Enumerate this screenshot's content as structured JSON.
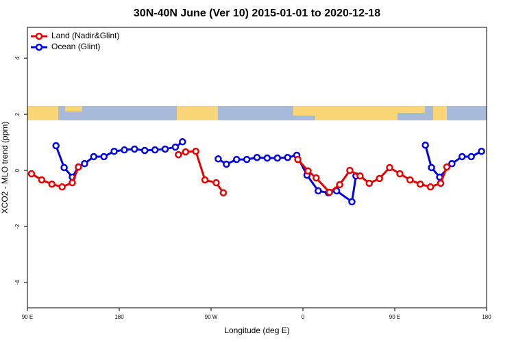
{
  "chart_data": {
    "type": "line",
    "title": "30N-40N June (Ver 10)   2015-01-01 to 2020-12-18",
    "x_label": "Longitude (deg E)",
    "y_label": "XCO2 - MLO trend (ppm)",
    "xlim": [
      90,
      540
    ],
    "ylim": [
      -4.9,
      5.1
    ],
    "xticks": [
      {
        "value": 90,
        "label": "90 E"
      },
      180,
      {
        "value": 270,
        "label": "90 W"
      },
      {
        "value": 360,
        "label": "0"
      },
      {
        "value": 450,
        "label": "90 E"
      },
      {
        "value": 540,
        "label": "180"
      }
    ],
    "yticks": [
      -4,
      -2,
      0,
      2,
      4
    ],
    "legend": "top-left",
    "series": [
      {
        "name": "Land (Nadir&Glint)",
        "color": "#e60000",
        "x": [
          94,
          104,
          114,
          124,
          134,
          140,
          null,
          238,
          245,
          255,
          264,
          275,
          282,
          null,
          355,
          365,
          373,
          386,
          396,
          406,
          416,
          425,
          435,
          445,
          455,
          465,
          475,
          485,
          495,
          501
        ],
        "values": [
          -0.12,
          -0.34,
          -0.49,
          -0.59,
          -0.44,
          0.12,
          null,
          0.56,
          0.66,
          0.68,
          -0.34,
          -0.44,
          -0.8,
          null,
          0.39,
          -0.02,
          -0.27,
          -0.78,
          -0.51,
          0,
          -0.2,
          -0.46,
          -0.29,
          0.1,
          -0.12,
          -0.34,
          -0.49,
          -0.59,
          -0.46,
          0.12
        ]
      },
      {
        "name": "Ocean (Glint)",
        "color": "#0000e6",
        "x": [
          118,
          126,
          134,
          140,
          146,
          155,
          165,
          175,
          185,
          195,
          205,
          215,
          225,
          235,
          242,
          null,
          277,
          285,
          295,
          305,
          315,
          325,
          335,
          345,
          354,
          364,
          375,
          385,
          393,
          408,
          412,
          null,
          480,
          486,
          494,
          506,
          516,
          525,
          535
        ],
        "values": [
          0.88,
          0.1,
          -0.24,
          0.12,
          0.24,
          0.49,
          0.49,
          0.68,
          0.73,
          0.76,
          0.71,
          0.73,
          0.76,
          0.83,
          1.02,
          null,
          0.41,
          0.22,
          0.39,
          0.39,
          0.46,
          0.44,
          0.44,
          0.46,
          0.54,
          -0.17,
          -0.73,
          -0.8,
          -0.73,
          -1.12,
          -0.2,
          null,
          0.9,
          0.1,
          -0.24,
          0.24,
          0.49,
          0.49,
          0.68
        ]
      }
    ]
  }
}
